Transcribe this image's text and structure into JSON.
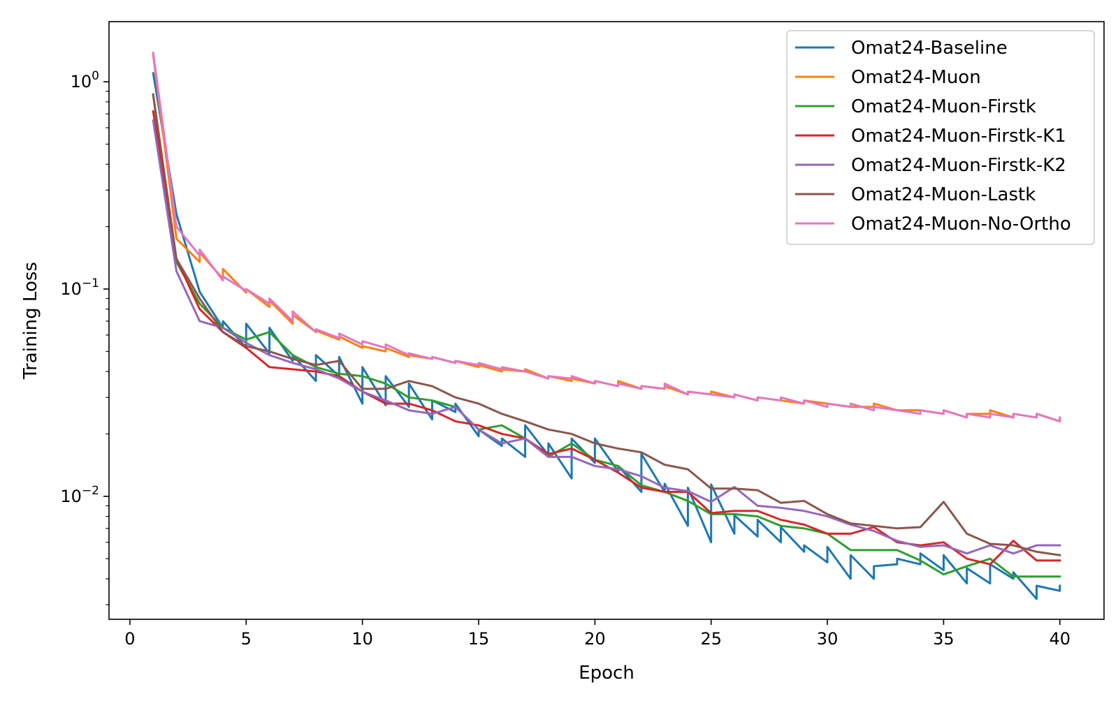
{
  "chart_data": {
    "type": "line",
    "title": "",
    "xlabel": "Epoch",
    "ylabel": "Training Loss",
    "xlim": [
      -0.9,
      41.9
    ],
    "ylim": [
      0.00255,
      1.95
    ],
    "yscale": "log",
    "grid": false,
    "legend_position": "top-right",
    "x_ticks": [
      0,
      5,
      10,
      15,
      20,
      25,
      30,
      35,
      40
    ],
    "x_tick_labels": [
      "0",
      "5",
      "10",
      "15",
      "20",
      "25",
      "30",
      "35",
      "40"
    ],
    "y_ticks": [
      1,
      0.1,
      0.01
    ],
    "y_tick_mantissa": "10",
    "y_tick_exponents": [
      "0",
      "−1",
      "−2"
    ],
    "x": [
      1,
      2,
      3,
      4,
      5,
      6,
      7,
      8,
      9,
      10,
      11,
      12,
      13,
      14,
      15,
      16,
      17,
      18,
      19,
      20,
      21,
      22,
      23,
      24,
      25,
      26,
      27,
      28,
      29,
      30,
      31,
      32,
      33,
      34,
      35,
      36,
      37,
      38,
      39,
      40
    ],
    "series": [
      {
        "name": "Omat24-Baseline",
        "color": "#1f77b4",
        "values": [
          1.1,
          0.23,
          0.097,
          0.07,
          0.068,
          0.065,
          0.048,
          0.048,
          0.047,
          0.042,
          0.038,
          0.035,
          0.029,
          0.028,
          0.021,
          0.019,
          0.022,
          0.018,
          0.019,
          0.019,
          0.014,
          0.016,
          0.0115,
          0.011,
          0.0114,
          0.0081,
          0.0077,
          0.0071,
          0.0058,
          0.0057,
          0.0052,
          0.0046,
          0.005,
          0.0053,
          0.0052,
          0.0045,
          0.0047,
          0.0043,
          0.0037,
          0.0037
        ],
        "jumps": [
          null,
          null,
          null,
          0.065,
          0.052,
          0.049,
          0.045,
          0.036,
          0.038,
          0.028,
          0.0275,
          0.027,
          0.0235,
          0.0255,
          0.0195,
          0.0175,
          0.0155,
          0.0158,
          0.0122,
          0.0145,
          0.0132,
          0.0105,
          0.0105,
          0.0072,
          0.006,
          0.0066,
          0.0064,
          0.006,
          0.0054,
          0.0048,
          0.004,
          0.004,
          0.0047,
          0.0047,
          0.0044,
          0.0038,
          0.0038,
          0.004,
          0.0032,
          0.0035
        ]
      },
      {
        "name": "Omat24-Muon",
        "color": "#ff7f0e",
        "values": [
          1.35,
          0.175,
          0.15,
          0.125,
          0.1,
          0.088,
          0.075,
          0.063,
          0.059,
          0.053,
          0.052,
          0.048,
          0.047,
          0.045,
          0.043,
          0.041,
          0.041,
          0.038,
          0.037,
          0.036,
          0.036,
          0.034,
          0.034,
          0.032,
          0.032,
          0.031,
          0.03,
          0.029,
          0.029,
          0.028,
          0.027,
          0.028,
          0.026,
          0.026,
          0.026,
          0.025,
          0.026,
          0.025,
          0.025,
          0.024
        ],
        "jumps": [
          null,
          null,
          0.135,
          0.112,
          0.096,
          0.082,
          0.068,
          0.062,
          0.057,
          0.052,
          0.05,
          0.047,
          0.046,
          0.044,
          0.042,
          0.04,
          0.04,
          0.037,
          0.036,
          0.035,
          0.034,
          0.033,
          0.033,
          0.031,
          0.031,
          0.03,
          0.029,
          0.029,
          0.028,
          0.028,
          0.027,
          0.027,
          0.026,
          0.026,
          0.025,
          0.024,
          0.025,
          0.024,
          0.024,
          0.023
        ]
      },
      {
        "name": "Omat24-Muon-Firstk",
        "color": "#2ca02c",
        "values": [
          0.86,
          0.135,
          0.085,
          0.065,
          0.057,
          0.062,
          0.048,
          0.042,
          0.039,
          0.038,
          0.035,
          0.03,
          0.029,
          0.027,
          0.021,
          0.022,
          0.019,
          0.0155,
          0.018,
          0.015,
          0.014,
          0.0113,
          0.0105,
          0.0095,
          0.0082,
          0.0082,
          0.008,
          0.0072,
          0.007,
          0.0066,
          0.0055,
          0.0055,
          0.0055,
          0.0049,
          0.0042,
          0.0046,
          0.005,
          0.0041,
          0.0041,
          0.0041
        ],
        "jumps": null
      },
      {
        "name": "Omat24-Muon-Firstk-K1",
        "color": "#d62728",
        "values": [
          0.72,
          0.14,
          0.08,
          0.062,
          0.052,
          0.042,
          0.041,
          0.04,
          0.038,
          0.032,
          0.028,
          0.028,
          0.026,
          0.023,
          0.022,
          0.02,
          0.019,
          0.016,
          0.017,
          0.015,
          0.013,
          0.011,
          0.0105,
          0.0105,
          0.0083,
          0.0085,
          0.0085,
          0.0077,
          0.0073,
          0.0066,
          0.0066,
          0.0071,
          0.006,
          0.0058,
          0.006,
          0.005,
          0.0047,
          0.0061,
          0.0049,
          0.0049
        ],
        "jumps": null
      },
      {
        "name": "Omat24-Muon-Firstk-K2",
        "color": "#9467bd",
        "values": [
          0.65,
          0.122,
          0.07,
          0.065,
          0.055,
          0.048,
          0.044,
          0.041,
          0.037,
          0.032,
          0.029,
          0.026,
          0.025,
          0.027,
          0.021,
          0.018,
          0.019,
          0.0155,
          0.0155,
          0.014,
          0.0135,
          0.0125,
          0.011,
          0.0106,
          0.0094,
          0.0111,
          0.009,
          0.0088,
          0.0085,
          0.008,
          0.0073,
          0.0068,
          0.0061,
          0.0057,
          0.0058,
          0.0053,
          0.0058,
          0.0053,
          0.0058,
          0.0058
        ],
        "jumps": null
      },
      {
        "name": "Omat24-Muon-Lastk",
        "color": "#8c564b",
        "values": [
          0.87,
          0.14,
          0.09,
          0.062,
          0.053,
          0.05,
          0.046,
          0.043,
          0.045,
          0.033,
          0.033,
          0.036,
          0.034,
          0.03,
          0.028,
          0.025,
          0.023,
          0.021,
          0.02,
          0.018,
          0.017,
          0.0163,
          0.0142,
          0.0135,
          0.0109,
          0.0109,
          0.0107,
          0.0093,
          0.0095,
          0.0082,
          0.0074,
          0.0072,
          0.007,
          0.0071,
          0.0094,
          0.0066,
          0.0059,
          0.0058,
          0.0054,
          0.0052
        ],
        "jumps": null
      },
      {
        "name": "Omat24-Muon-No-Ortho",
        "color": "#e377c2",
        "values": [
          1.38,
          0.2,
          0.155,
          0.115,
          0.1,
          0.09,
          0.078,
          0.064,
          0.061,
          0.056,
          0.054,
          0.049,
          0.047,
          0.045,
          0.044,
          0.042,
          0.04,
          0.038,
          0.038,
          0.036,
          0.035,
          0.034,
          0.035,
          0.032,
          0.031,
          0.031,
          0.03,
          0.03,
          0.029,
          0.028,
          0.028,
          0.027,
          0.026,
          0.026,
          0.026,
          0.025,
          0.025,
          0.025,
          0.025,
          0.024
        ],
        "jumps": [
          null,
          null,
          0.145,
          0.11,
          0.098,
          0.085,
          0.07,
          0.062,
          0.058,
          0.054,
          0.052,
          0.048,
          0.046,
          0.044,
          0.043,
          0.041,
          0.04,
          0.037,
          0.037,
          0.035,
          0.034,
          0.033,
          0.033,
          0.031,
          0.031,
          0.03,
          0.029,
          0.029,
          0.028,
          0.027,
          0.027,
          0.026,
          0.026,
          0.025,
          0.025,
          0.024,
          0.024,
          0.024,
          0.024,
          0.023
        ]
      }
    ]
  }
}
